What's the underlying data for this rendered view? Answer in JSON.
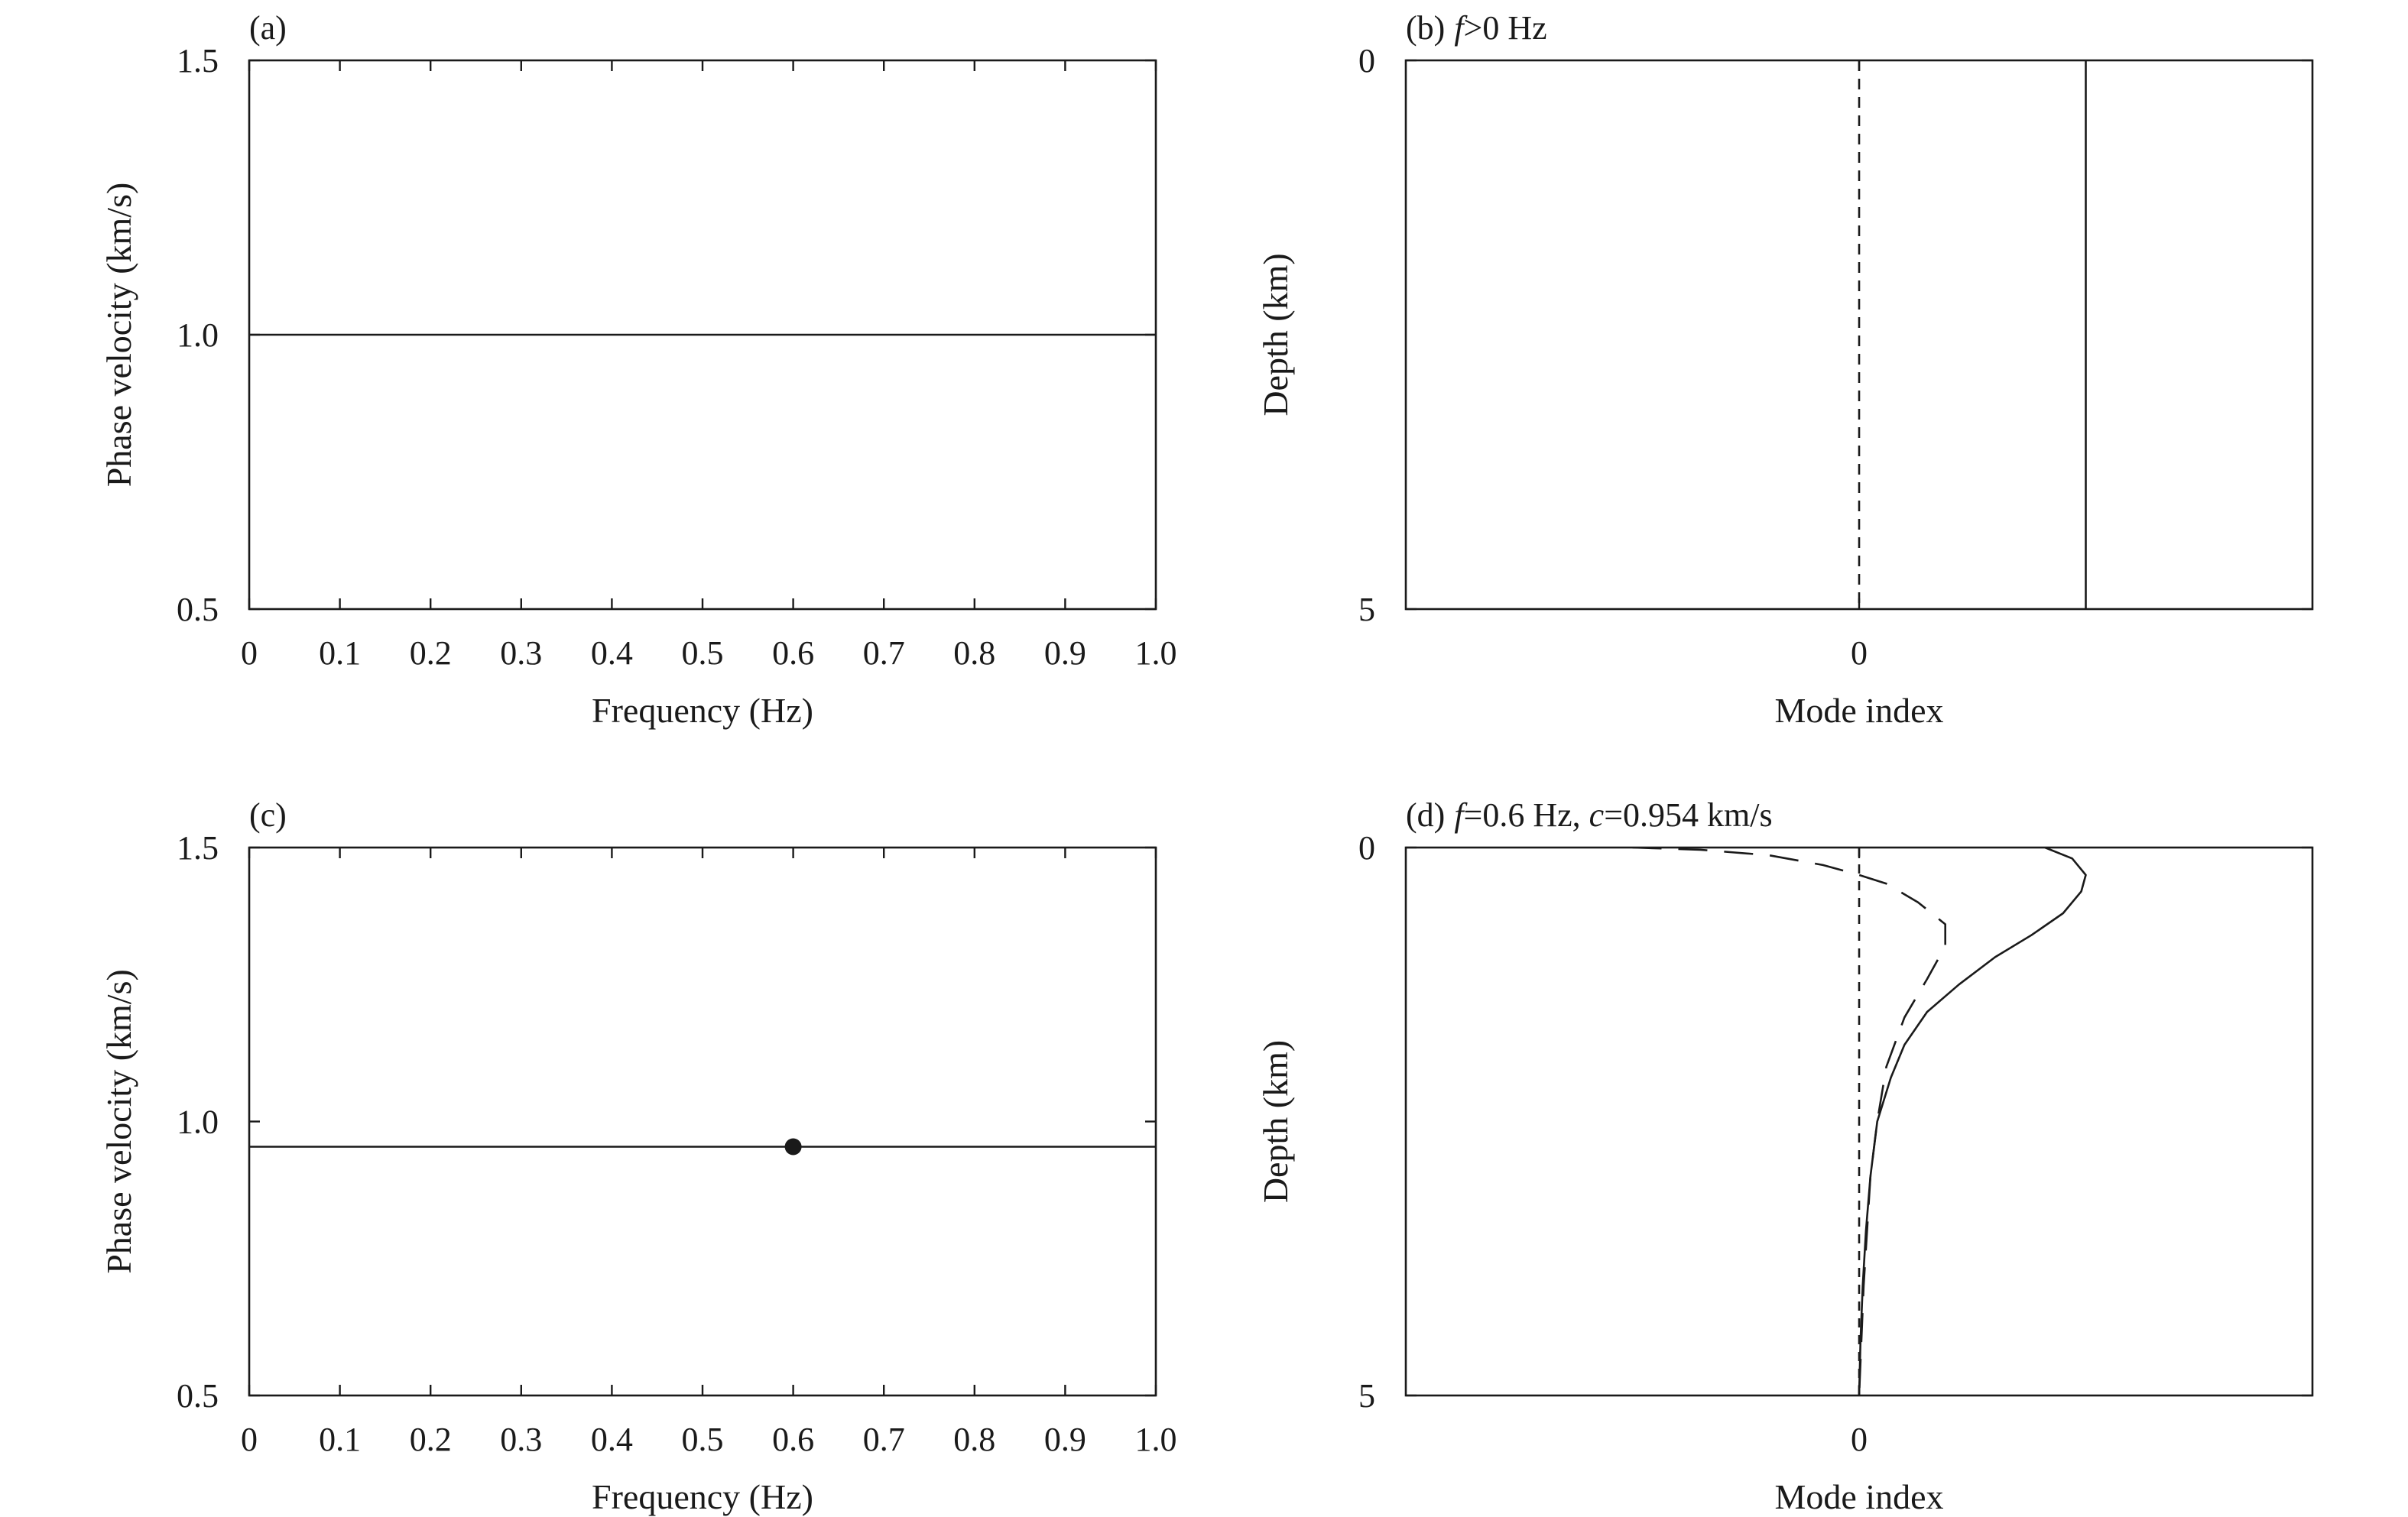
{
  "chart_data": [
    {
      "id": "a",
      "type": "line",
      "title_prefix": "(a)",
      "title_parts": [],
      "xlabel": "Frequency (Hz)",
      "ylabel": "Phase velocity (km/s)",
      "xlim": [
        0,
        1.0
      ],
      "ylim": [
        0.5,
        1.5
      ],
      "xticks": [
        "0",
        "0.1",
        "0.2",
        "0.3",
        "0.4",
        "0.5",
        "0.6",
        "0.7",
        "0.8",
        "0.9",
        "1.0"
      ],
      "xtick_values": [
        0,
        0.1,
        0.2,
        0.3,
        0.4,
        0.5,
        0.6,
        0.7,
        0.8,
        0.9,
        1.0
      ],
      "yticks": [
        "0.5",
        "1.0",
        "1.5"
      ],
      "ytick_values": [
        0.5,
        1.0,
        1.5
      ],
      "series": [
        {
          "style": "solid",
          "x": [
            0,
            1.0
          ],
          "y": [
            1.0,
            1.0
          ]
        }
      ]
    },
    {
      "id": "b",
      "type": "line",
      "title_prefix": "(b)",
      "title_parts": [
        {
          "text": "f",
          "italic": true
        },
        {
          "text": ">0 Hz",
          "italic": false
        }
      ],
      "xlabel": "Mode index",
      "ylabel": "Depth (km)",
      "xlim": [
        -1,
        1
      ],
      "ylim": [
        5,
        0
      ],
      "xticks": [
        "0"
      ],
      "xtick_values": [
        0
      ],
      "yticks": [
        "0",
        "5"
      ],
      "ytick_values": [
        0,
        5
      ],
      "series": [
        {
          "style": "dashed",
          "x": [
            0,
            0
          ],
          "y": [
            0,
            5
          ]
        },
        {
          "style": "solid",
          "x": [
            0.5,
            0.5
          ],
          "y": [
            0,
            5
          ]
        }
      ]
    },
    {
      "id": "c",
      "type": "line",
      "title_prefix": "(c)",
      "title_parts": [],
      "xlabel": "Frequency (Hz)",
      "ylabel": "Phase velocity (km/s)",
      "xlim": [
        0,
        1.0
      ],
      "ylim": [
        0.5,
        1.5
      ],
      "xticks": [
        "0",
        "0.1",
        "0.2",
        "0.3",
        "0.4",
        "0.5",
        "0.6",
        "0.7",
        "0.8",
        "0.9",
        "1.0"
      ],
      "xtick_values": [
        0,
        0.1,
        0.2,
        0.3,
        0.4,
        0.5,
        0.6,
        0.7,
        0.8,
        0.9,
        1.0
      ],
      "yticks": [
        "0.5",
        "1.0",
        "1.5"
      ],
      "ytick_values": [
        0.5,
        1.0,
        1.5
      ],
      "series": [
        {
          "style": "solid",
          "x": [
            0,
            1.0
          ],
          "y": [
            0.954,
            0.954
          ]
        }
      ],
      "markers": [
        {
          "x": 0.6,
          "y": 0.954
        }
      ]
    },
    {
      "id": "d",
      "type": "line",
      "title_prefix": "(d)",
      "title_parts": [
        {
          "text": "f",
          "italic": true
        },
        {
          "text": "=0.6 Hz, ",
          "italic": false
        },
        {
          "text": "c",
          "italic": true
        },
        {
          "text": "=0.954 km/s",
          "italic": false
        }
      ],
      "xlabel": "Mode index",
      "ylabel": "Depth (km)",
      "xlim": [
        -1,
        1
      ],
      "ylim": [
        5,
        0
      ],
      "xticks": [
        "0"
      ],
      "xtick_values": [
        0
      ],
      "yticks": [
        "0",
        "5"
      ],
      "ytick_values": [
        0,
        5
      ],
      "series": [
        {
          "style": "dashed-short",
          "x": [
            0,
            0
          ],
          "y": [
            0,
            5
          ]
        },
        {
          "style": "solid",
          "x": [
            0.41,
            0.47,
            0.5,
            0.49,
            0.45,
            0.38,
            0.3,
            0.22,
            0.15,
            0.1,
            0.07,
            0.04,
            0.025,
            0.015,
            0.008,
            0.003,
            0.0
          ],
          "y": [
            0,
            0.1,
            0.25,
            0.4,
            0.6,
            0.8,
            1.0,
            1.25,
            1.5,
            1.8,
            2.1,
            2.5,
            3.0,
            3.5,
            4.0,
            4.5,
            5.0
          ]
        },
        {
          "style": "dashed-long",
          "x": [
            -0.5,
            -0.35,
            -0.2,
            -0.08,
            0.0,
            0.06,
            0.13,
            0.19,
            0.19,
            0.15,
            0.1,
            0.06,
            0.04,
            0.025,
            0.01,
            0.0
          ],
          "y": [
            0,
            0.02,
            0.07,
            0.16,
            0.25,
            0.33,
            0.5,
            0.7,
            0.9,
            1.2,
            1.55,
            2.0,
            2.5,
            3.0,
            4.0,
            5.0
          ]
        }
      ]
    }
  ]
}
